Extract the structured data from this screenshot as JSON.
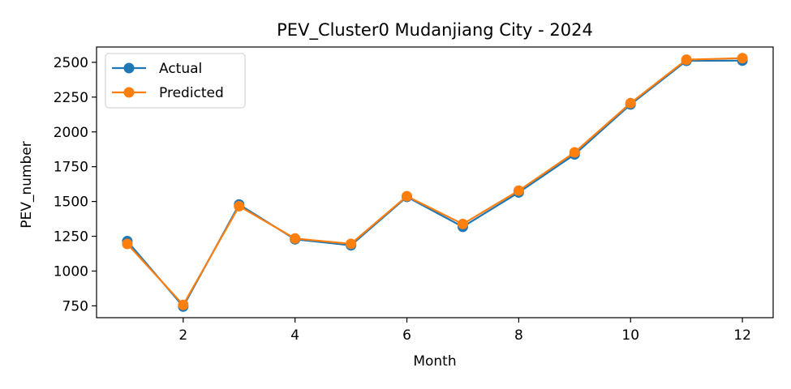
{
  "chart_data": {
    "type": "line",
    "title": "PEV_Cluster0 Mudanjiang City - 2024",
    "xlabel": "Month",
    "ylabel": "PEV_number",
    "x": [
      1,
      2,
      3,
      4,
      5,
      6,
      7,
      8,
      9,
      10,
      11,
      12
    ],
    "xticks": [
      2,
      4,
      6,
      8,
      10,
      12
    ],
    "yticks": [
      750,
      1000,
      1250,
      1500,
      1750,
      2000,
      2250,
      2500
    ],
    "xlim": [
      0.45,
      12.55
    ],
    "ylim": [
      665,
      2610
    ],
    "grid": false,
    "legend_position": "upper-left",
    "series": [
      {
        "name": "Actual",
        "color": "#1f77b4",
        "marker": "circle",
        "values": [
          1215,
          745,
          1478,
          1228,
          1185,
          1533,
          1318,
          1565,
          1838,
          2197,
          2511,
          2512
        ]
      },
      {
        "name": "Predicted",
        "color": "#ff7f0e",
        "marker": "circle",
        "values": [
          1195,
          757,
          1466,
          1234,
          1196,
          1538,
          1338,
          1578,
          1853,
          2207,
          2519,
          2530
        ]
      }
    ]
  }
}
